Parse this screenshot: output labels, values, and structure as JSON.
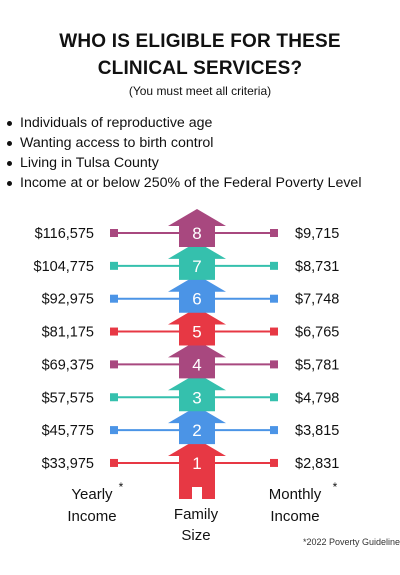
{
  "title_line1": "WHO IS ELIGIBLE FOR THESE",
  "title_line2": "CLINICAL SERVICES?",
  "subtitle": "(You must meet all criteria)",
  "criteria": [
    "Individuals of reproductive age",
    "Wanting access to birth control",
    "Living in Tulsa County",
    "Income at or below 250% of the Federal Poverty Level"
  ],
  "colors": {
    "magenta": "#a8487f",
    "teal": "#35c0ad",
    "blue": "#4b94e6",
    "red": "#e73844"
  },
  "rows": [
    {
      "size": "8",
      "yearly": "$116,575",
      "monthly": "$9,715",
      "color": "#a8487f"
    },
    {
      "size": "7",
      "yearly": "$104,775",
      "monthly": "$8,731",
      "color": "#35c0ad"
    },
    {
      "size": "6",
      "yearly": "$92,975",
      "monthly": "$7,748",
      "color": "#4b94e6"
    },
    {
      "size": "5",
      "yearly": "$81,175",
      "monthly": "$6,765",
      "color": "#e73844"
    },
    {
      "size": "4",
      "yearly": "$69,375",
      "monthly": "$5,781",
      "color": "#a8487f"
    },
    {
      "size": "3",
      "yearly": "$57,575",
      "monthly": "$4,798",
      "color": "#35c0ad"
    },
    {
      "size": "2",
      "yearly": "$45,775",
      "monthly": "$3,815",
      "color": "#4b94e6"
    },
    {
      "size": "1",
      "yearly": "$33,975",
      "monthly": "$2,831",
      "color": "#e73844"
    }
  ],
  "labels": {
    "yearly_line1": "Yearly",
    "yearly_line2": "Income",
    "family_line1": "Family",
    "family_line2": "Size",
    "monthly_line1": "Monthly",
    "monthly_line2": "Income",
    "asterisk": "*"
  },
  "footnote": "*2022 Poverty Guideline"
}
